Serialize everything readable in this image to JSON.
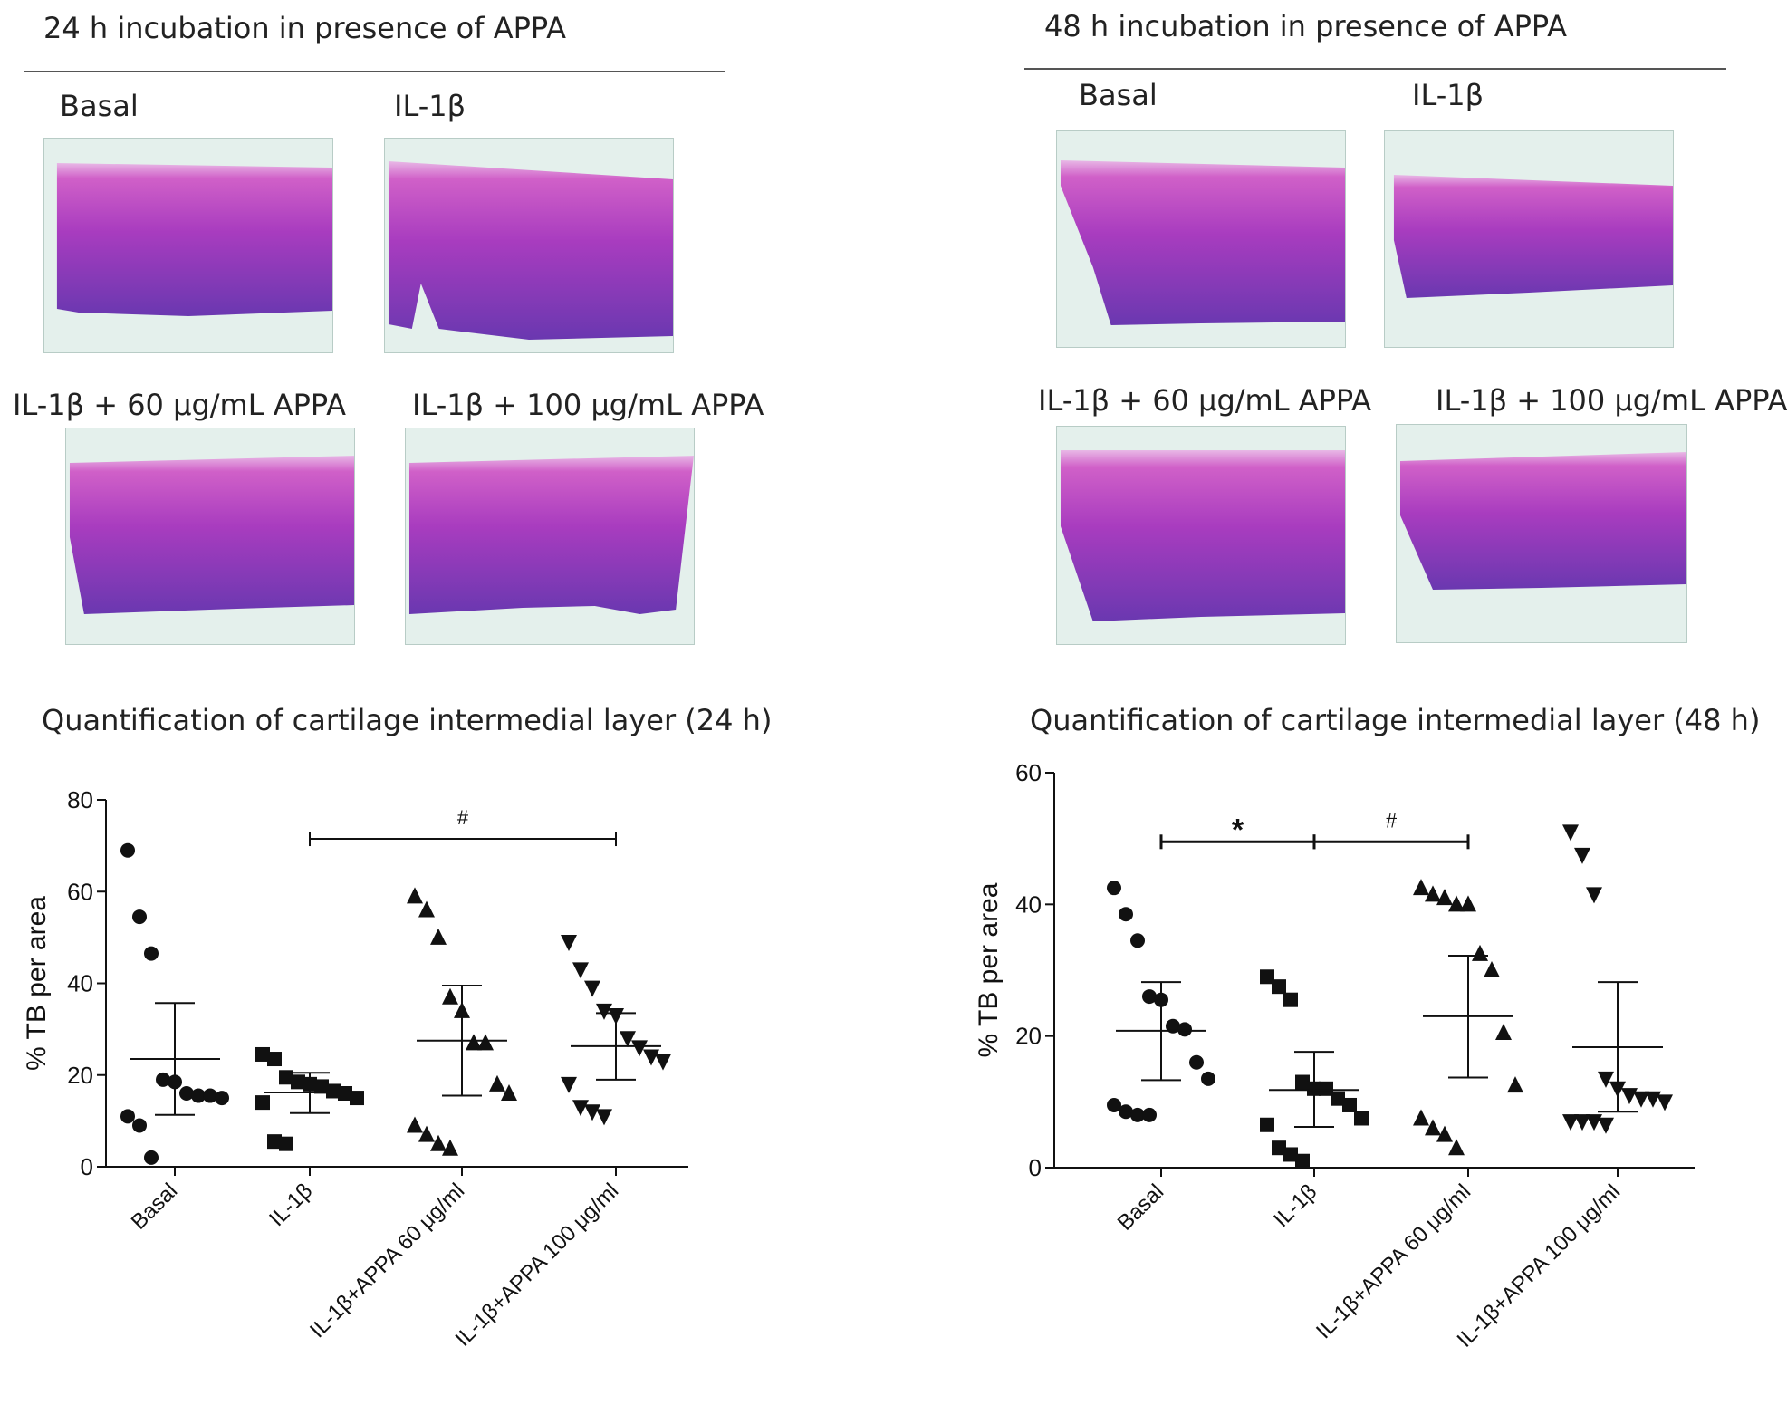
{
  "colors": {
    "stain_top": "#d060c8",
    "stain_mid": "#a83cbf",
    "stain_bottom": "#6a38b0",
    "slide_bg": "#e4f0ec",
    "marker": "#111111"
  },
  "panels": [
    {
      "title": "24 h incubation in presence of APPA",
      "images": [
        {
          "label": "Basal"
        },
        {
          "label": "IL-1β"
        },
        {
          "label": "IL-1β + 60 μg/mL APPA"
        },
        {
          "label": "IL-1β + 100 μg/mL APPA"
        }
      ],
      "quant_title": "Quantification of cartilage intermedial layer  (24 h)"
    },
    {
      "title": "48 h incubation in presence of APPA",
      "images": [
        {
          "label": "Basal"
        },
        {
          "label": "IL-1β"
        },
        {
          "label": "IL-1β + 60 μg/mL APPA"
        },
        {
          "label": "IL-1β + 100 μg/mL APPA"
        }
      ],
      "quant_title": "Quantification of cartilage intermedial layer  (48 h)"
    }
  ],
  "chart_data": [
    {
      "type": "scatter",
      "title": "Quantification of cartilage intermedial layer  (24 h)",
      "ylabel": "% TB per area",
      "xlabel": "",
      "ylim": [
        0,
        80
      ],
      "yticks": [
        0,
        20,
        40,
        60,
        80
      ],
      "categories": [
        "Basal",
        "IL-1β",
        "IL-1β+APPA 60 μg/ml",
        "IL-1β+APPA 100 μg/ml"
      ],
      "markers": [
        "circle",
        "square",
        "triangle-up",
        "triangle-down"
      ],
      "series": [
        {
          "name": "Basal",
          "values": [
            69,
            54.5,
            46.5,
            19,
            18.5,
            16,
            15.5,
            15.5,
            15,
            11,
            9,
            2
          ],
          "mean": 23.5,
          "sem_low": 11.3,
          "sem_high": 35.7
        },
        {
          "name": "IL-1β",
          "values": [
            24.5,
            23.5,
            19.5,
            18.5,
            18,
            17.5,
            16.5,
            16,
            15,
            14,
            5.5,
            5
          ],
          "mean": 16.2,
          "sem_low": 11.7,
          "sem_high": 20.5
        },
        {
          "name": "IL-1β+APPA 60 μg/ml",
          "values": [
            59,
            56,
            50,
            37,
            34,
            27,
            27,
            18,
            16,
            9,
            7,
            5,
            4
          ],
          "mean": 27.5,
          "sem_low": 15.5,
          "sem_high": 39.5
        },
        {
          "name": "IL-1β+APPA 100 μg/ml",
          "values": [
            49,
            43,
            39,
            34,
            33,
            28,
            26,
            24,
            23,
            18,
            13,
            12,
            11
          ],
          "mean": 26.3,
          "sem_low": 19,
          "sem_high": 33.5
        }
      ],
      "annotations": [
        {
          "text": "#",
          "from": "IL-1β",
          "to": "IL-1β+APPA 100 μg/ml",
          "y": 71.5
        }
      ]
    },
    {
      "type": "scatter",
      "title": "Quantification of cartilage intermedial layer  (48 h)",
      "ylabel": "% TB per area",
      "xlabel": "",
      "ylim": [
        0,
        60
      ],
      "yticks": [
        0,
        20,
        40,
        60
      ],
      "categories": [
        "Basal",
        "IL-1β",
        "IL-1β+APPA 60 μg/ml",
        "IL-1β+APPA 100 μg/ml"
      ],
      "markers": [
        "circle",
        "square",
        "triangle-up",
        "triangle-down"
      ],
      "series": [
        {
          "name": "Basal",
          "values": [
            42.5,
            38.5,
            34.5,
            26,
            25.5,
            21.5,
            21,
            16,
            13.5,
            9.5,
            8.5,
            8,
            8
          ],
          "mean": 20.8,
          "sem_low": 13.3,
          "sem_high": 28.2
        },
        {
          "name": "IL-1β",
          "values": [
            29,
            27.5,
            25.5,
            13,
            12,
            12,
            10.5,
            9.5,
            7.5,
            6.5,
            3,
            2,
            1
          ],
          "mean": 11.8,
          "sem_low": 6.2,
          "sem_high": 17.6
        },
        {
          "name": "IL-1β+APPA 60 μg/ml",
          "values": [
            42.5,
            41.5,
            41,
            40,
            40,
            32.5,
            30,
            20.5,
            12.5,
            7.5,
            6,
            5,
            3
          ],
          "mean": 23,
          "sem_low": 13.7,
          "sem_high": 32.2
        },
        {
          "name": "IL-1β+APPA 100 μg/ml",
          "values": [
            51,
            47.5,
            41.5,
            13.5,
            12,
            11,
            10.5,
            10.5,
            10,
            7,
            7,
            7,
            6.5
          ],
          "mean": 18.3,
          "sem_low": 8.5,
          "sem_high": 28.2
        }
      ],
      "annotations": [
        {
          "text": "*",
          "from": "Basal",
          "to": "IL-1β",
          "y": 49.5
        },
        {
          "text": "#",
          "from": "IL-1β",
          "to": "IL-1β+APPA 60 μg/ml",
          "y": 49.5
        }
      ]
    }
  ]
}
